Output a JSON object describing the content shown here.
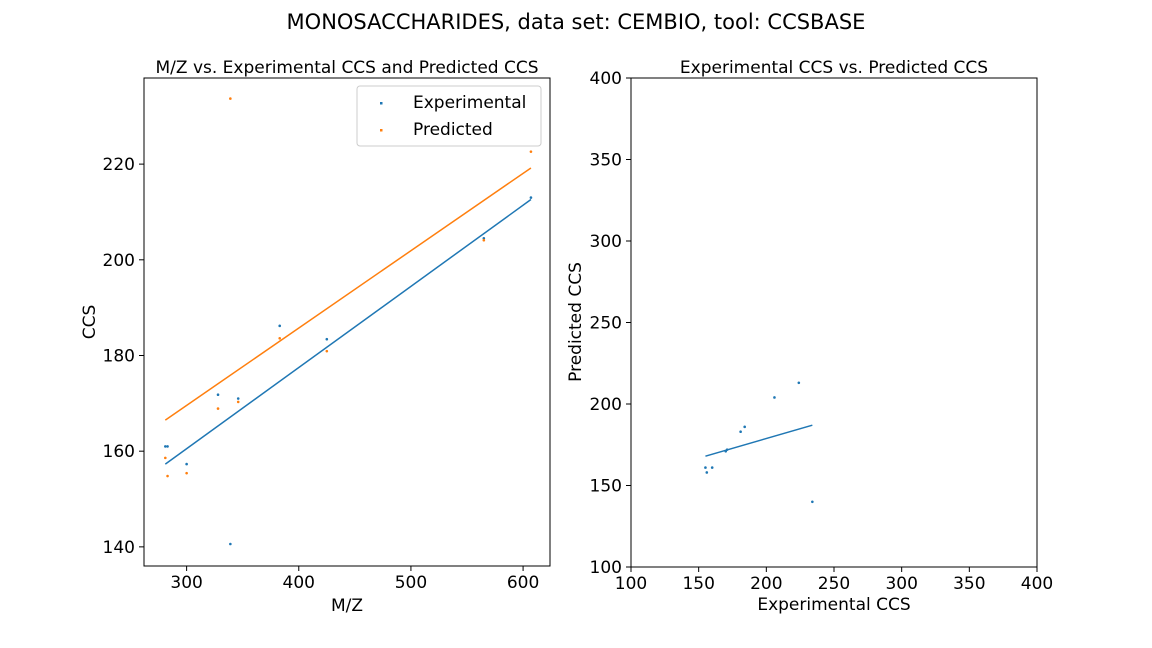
{
  "suptitle": "MONOSACCHARIDES, data set: CEMBIO, tool: CCSBASE",
  "colors": {
    "experimental": "#1f77b4",
    "predicted": "#ff7f0e",
    "axis": "#000000"
  },
  "chart_data": [
    {
      "type": "scatter",
      "title": "M/Z vs. Experimental CCS and Predicted CCS",
      "xlabel": "M/Z",
      "ylabel": "CCS",
      "xlim": [
        262,
        624
      ],
      "ylim": [
        136,
        238
      ],
      "xticks": [
        300,
        400,
        500,
        600
      ],
      "yticks": [
        140,
        160,
        180,
        200,
        220
      ],
      "legend": {
        "placement": "top-right",
        "entries": [
          "Experimental",
          "Predicted"
        ]
      },
      "series": [
        {
          "name": "Experimental",
          "color": "#1f77b4",
          "x": [
            281,
            283,
            300,
            328,
            339,
            346,
            383,
            425,
            565,
            607
          ],
          "y": [
            161.0,
            161.0,
            157.3,
            171.8,
            140.6,
            171.0,
            186.2,
            183.4,
            204.5,
            213.0
          ]
        },
        {
          "name": "Predicted",
          "color": "#ff7f0e",
          "x": [
            281,
            283,
            300,
            328,
            339,
            346,
            383,
            425,
            565,
            607
          ],
          "y": [
            158.6,
            154.8,
            155.4,
            168.9,
            233.7,
            170.3,
            183.6,
            180.9,
            204.1,
            222.6
          ]
        }
      ],
      "fit_lines": [
        {
          "series": "Experimental",
          "color": "#1f77b4",
          "x": [
            281,
            607
          ],
          "y": [
            157.3,
            212.6
          ]
        },
        {
          "series": "Predicted",
          "color": "#ff7f0e",
          "x": [
            281,
            607
          ],
          "y": [
            166.5,
            219.2
          ]
        }
      ]
    },
    {
      "type": "scatter",
      "title": "Experimental CCS vs. Predicted CCS",
      "xlabel": "Experimental CCS",
      "ylabel": "Predicted CCS",
      "xlim": [
        100,
        400
      ],
      "ylim": [
        100,
        400
      ],
      "xticks": [
        100,
        150,
        200,
        250,
        300,
        350,
        400
      ],
      "yticks": [
        100,
        150,
        200,
        250,
        300,
        350,
        400
      ],
      "points": {
        "color": "#1f77b4",
        "x": [
          155,
          156,
          160,
          170,
          171,
          181,
          184,
          206,
          224,
          234
        ],
        "y": [
          161,
          158,
          161,
          171,
          172,
          183,
          186,
          204,
          213,
          140
        ]
      },
      "fit_line": {
        "color": "#1f77b4",
        "x": [
          155,
          234
        ],
        "y": [
          168,
          187
        ]
      }
    }
  ]
}
